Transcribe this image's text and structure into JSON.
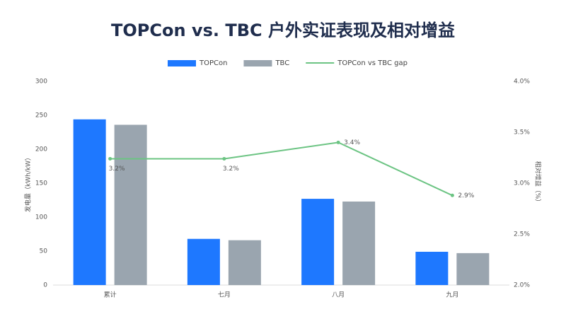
{
  "chart_data": {
    "type": "bar-line",
    "title": "TOPCon vs. TBC 户外实证表现及相对增益",
    "y_label": "发电量（kWh/kW）",
    "y2_label": "相对增益（%）",
    "categories": [
      "累计",
      "七月",
      "八月",
      "九月"
    ],
    "series": [
      {
        "name": "TOPCon",
        "color": "#1e78ff",
        "type": "bar",
        "values": [
          244,
          68,
          127,
          49
        ]
      },
      {
        "name": "TBC",
        "color": "#9aa5af",
        "type": "bar",
        "values": [
          236,
          66,
          123,
          47
        ]
      },
      {
        "name": "TOPCon vs TBC gap",
        "color": "#6cc483",
        "type": "line",
        "axis": "y2",
        "values": [
          3.24,
          3.24,
          3.4,
          2.88
        ],
        "value_labels": [
          "3.2%",
          "3.2%",
          "3.4%",
          "2.9%"
        ]
      }
    ],
    "ylim": [
      0,
      300
    ],
    "yticks": [
      0,
      50,
      100,
      150,
      200,
      250,
      300
    ],
    "y2lim": [
      2,
      4
    ],
    "y2ticks": [
      {
        "value": 2,
        "label": "2.0%"
      },
      {
        "value": 2.5,
        "label": "2.5%"
      },
      {
        "value": 3,
        "label": "3.0%"
      },
      {
        "value": 3.5,
        "label": "3.5%"
      },
      {
        "value": 4,
        "label": "4.0%"
      }
    ]
  }
}
